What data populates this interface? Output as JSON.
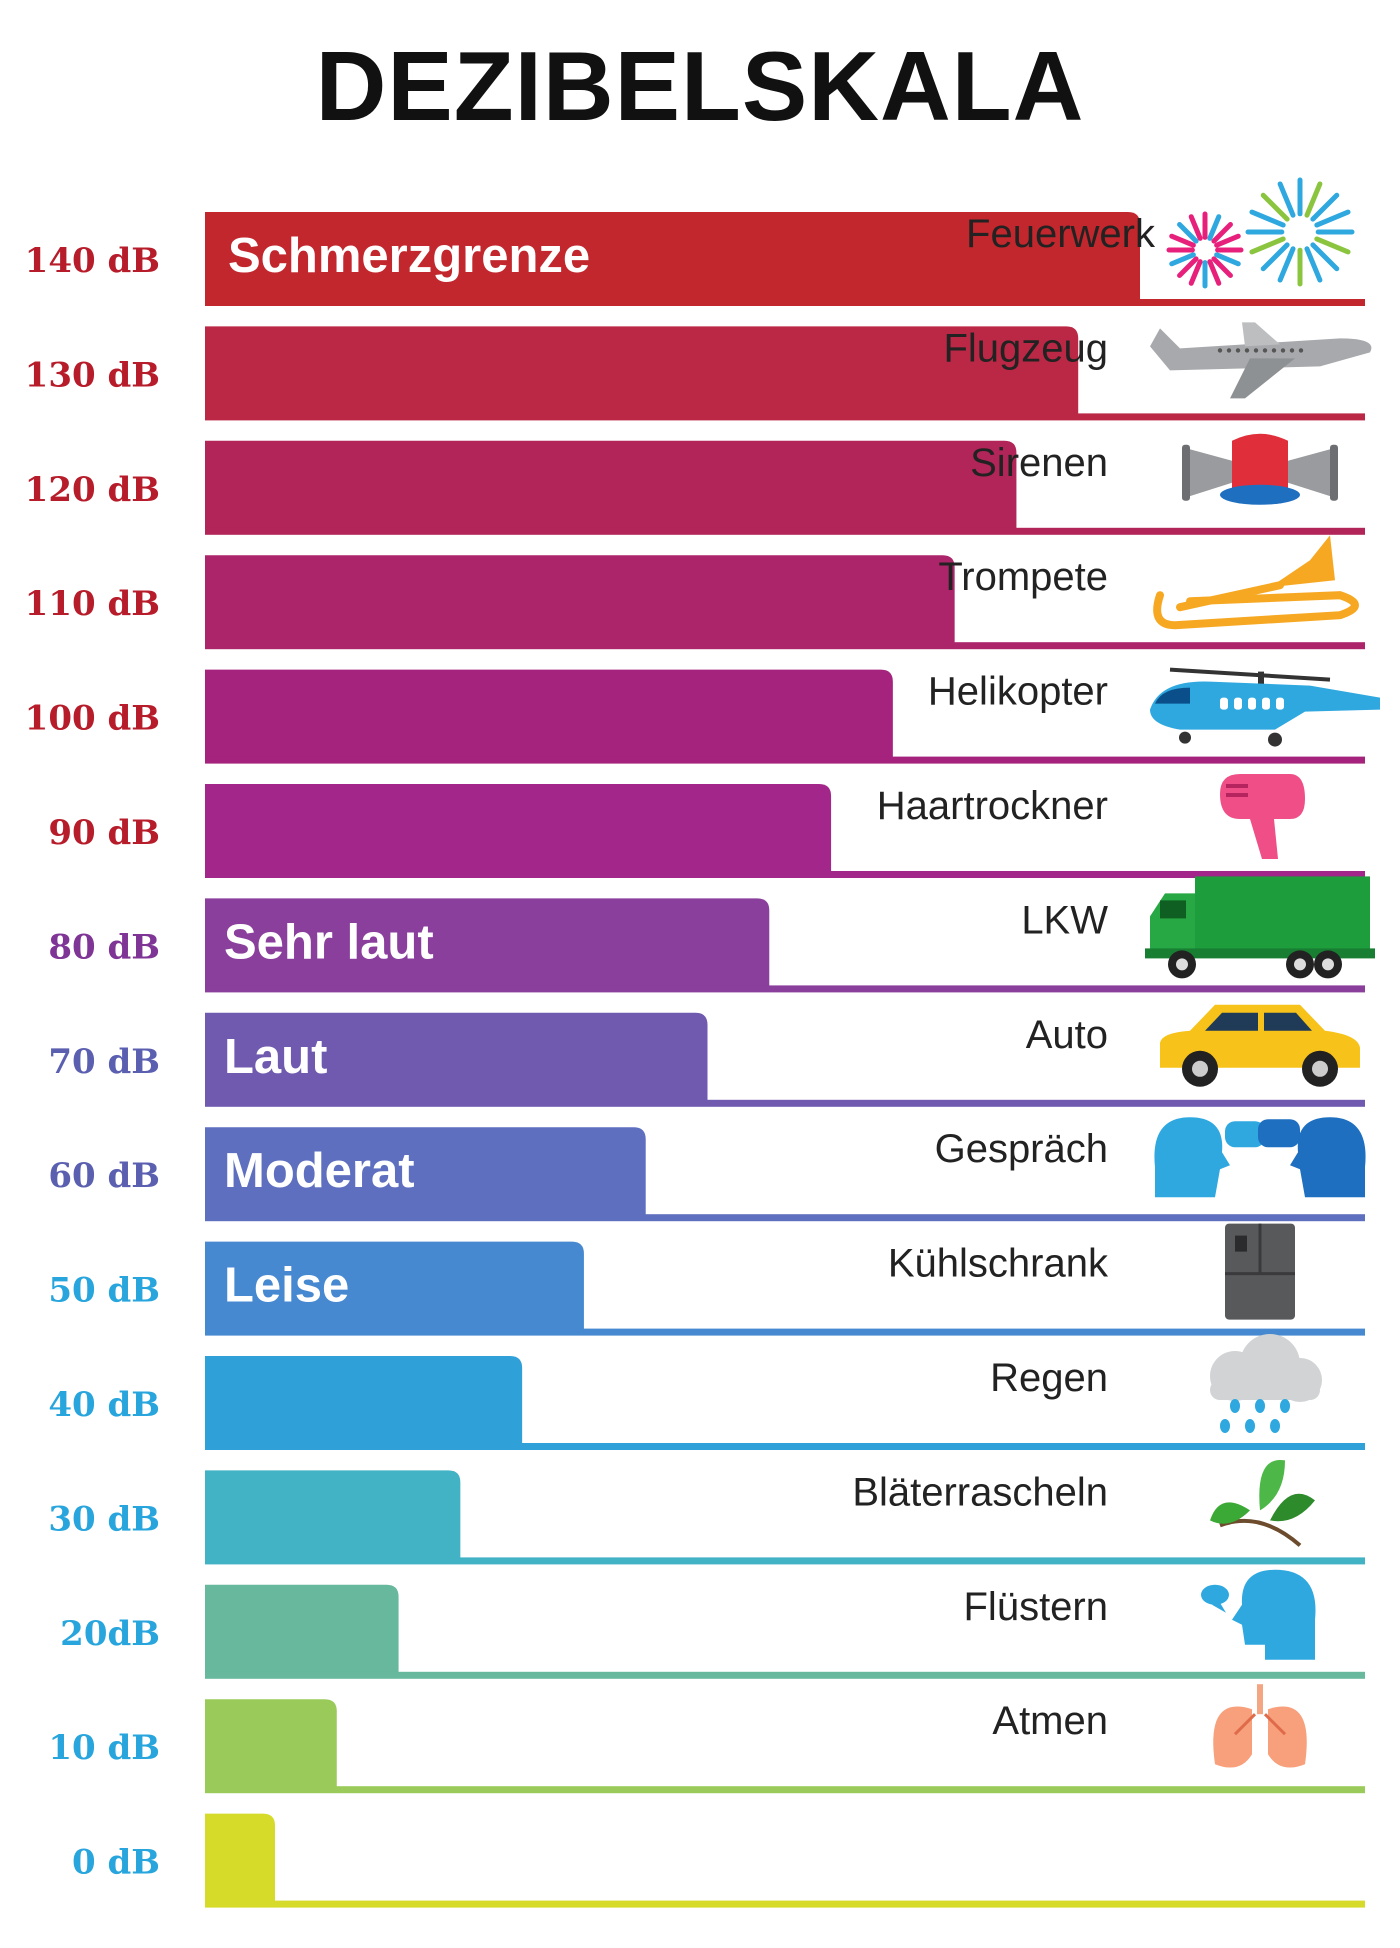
{
  "chart_data": {
    "type": "bar",
    "orientation": "horizontal",
    "title": "DEZIBELSKALA",
    "unit": "dB",
    "xlim": [
      0,
      140
    ],
    "rows": [
      {
        "label": "140 dB",
        "value": 140,
        "category": "Schmerzgrenze",
        "source": "Feuerwerk",
        "icon": "fireworks-icon",
        "color": "#C1272D"
      },
      {
        "label": "130 dB",
        "value": 130,
        "category": "",
        "source": "Flugzeug",
        "icon": "airplane-icon",
        "color": "#BA2845"
      },
      {
        "label": "120 dB",
        "value": 120,
        "category": "",
        "source": "Sirenen",
        "icon": "siren-icon",
        "color": "#B12558"
      },
      {
        "label": "110 dB",
        "value": 110,
        "category": "",
        "source": "Trompete",
        "icon": "trumpet-icon",
        "color": "#AC246A"
      },
      {
        "label": "100 dB",
        "value": 100,
        "category": "",
        "source": "Helikopter",
        "icon": "helicopter-icon",
        "color": "#A5237C"
      },
      {
        "label": "90 dB",
        "value": 90,
        "category": "",
        "source": "Haartrockner",
        "icon": "hairdryer-icon",
        "color": "#A3268B"
      },
      {
        "label": "80 dB",
        "value": 80,
        "category": "Sehr laut",
        "source": "LKW",
        "icon": "truck-icon",
        "color": "#8A3F9C"
      },
      {
        "label": "70 dB",
        "value": 70,
        "category": "Laut",
        "source": "Auto",
        "icon": "car-icon",
        "color": "#6F5AAF"
      },
      {
        "label": "60 dB",
        "value": 60,
        "category": "Moderat",
        "source": "Gespräch",
        "icon": "conversation-icon",
        "color": "#5E6FC0"
      },
      {
        "label": "50 dB",
        "value": 50,
        "category": "Leise",
        "source": "Kühlschrank",
        "icon": "fridge-icon",
        "color": "#4689D0"
      },
      {
        "label": "40 dB",
        "value": 40,
        "category": "",
        "source": "Regen",
        "icon": "rain-cloud-icon",
        "color": "#30A0D8"
      },
      {
        "label": "30 dB",
        "value": 30,
        "category": "",
        "source": "Bläterrascheln",
        "icon": "leaves-icon",
        "color": "#42B2C5"
      },
      {
        "label": "20dB",
        "value": 20,
        "category": "",
        "source": "Flüstern",
        "icon": "whisper-icon",
        "color": "#67B89C"
      },
      {
        "label": "10 dB",
        "value": 10,
        "category": "",
        "source": "Atmen",
        "icon": "lungs-icon",
        "color": "#9ACB5A"
      },
      {
        "label": "0 dB",
        "value": 0,
        "category": "",
        "source": "",
        "icon": "",
        "color": "#D6DB2A"
      }
    ],
    "label_colors": {
      "red": "#B71C2A",
      "purple": "#7F3596",
      "violet": "#5B5FB0",
      "blue": "#27A5DC"
    }
  }
}
